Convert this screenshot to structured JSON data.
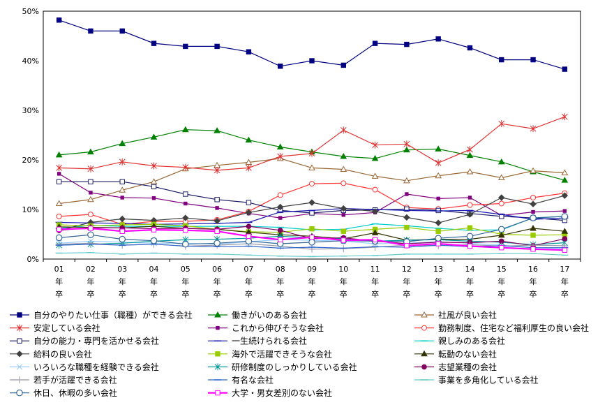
{
  "chart_data": {
    "type": "line",
    "categories": [
      [
        "01",
        "年",
        "卒"
      ],
      [
        "02",
        "年",
        "卒"
      ],
      [
        "03",
        "年",
        "卒"
      ],
      [
        "04",
        "年",
        "卒"
      ],
      [
        "05",
        "年",
        "卒"
      ],
      [
        "06",
        "年",
        "卒"
      ],
      [
        "07",
        "年",
        "卒"
      ],
      [
        "08",
        "年",
        "卒"
      ],
      [
        "09",
        "年",
        "卒"
      ],
      [
        "10",
        "年",
        "卒"
      ],
      [
        "11",
        "年",
        "卒"
      ],
      [
        "12",
        "年",
        "卒"
      ],
      [
        "13",
        "年",
        "卒"
      ],
      [
        "14",
        "年",
        "卒"
      ],
      [
        "15",
        "年",
        "卒"
      ],
      [
        "16",
        "年",
        "卒"
      ],
      [
        "17",
        "年",
        "卒"
      ]
    ],
    "y_ticks": [
      "0%",
      "10%",
      "20%",
      "30%",
      "40%",
      "50%"
    ],
    "ylim": [
      0,
      50
    ],
    "grid": "horizontal dashed at 10% steps",
    "legend_position": "bottom",
    "series": [
      {
        "name": "自分のやりたい仕事（職種）ができる会社",
        "color": "#000080",
        "marker": "square-filled",
        "width": 1.2,
        "values": [
          48.2,
          46.0,
          46.0,
          43.5,
          42.9,
          42.9,
          41.8,
          38.9,
          40.0,
          39.1,
          43.5,
          43.3,
          44.4,
          42.6,
          40.2,
          40.2,
          38.3
        ]
      },
      {
        "name": "働きがいのある会社",
        "color": "#008000",
        "marker": "triangle-filled",
        "width": 1.2,
        "values": [
          21.0,
          21.6,
          23.3,
          24.6,
          26.1,
          25.9,
          24.0,
          22.6,
          21.6,
          20.7,
          20.3,
          22.0,
          22.2,
          20.9,
          19.6,
          17.6,
          15.9
        ]
      },
      {
        "name": "社風が良い会社",
        "color": "#996633",
        "marker": "triangle-open",
        "width": 1.2,
        "values": [
          11.2,
          12.0,
          13.9,
          15.6,
          18.2,
          18.9,
          19.5,
          20.3,
          18.4,
          18.1,
          16.7,
          15.8,
          16.8,
          17.6,
          16.4,
          17.8,
          17.4
        ]
      },
      {
        "name": "安定している会社",
        "color": "#e03030",
        "marker": "asterisk",
        "width": 1.2,
        "values": [
          18.4,
          18.2,
          19.6,
          18.8,
          18.5,
          17.9,
          18.4,
          20.7,
          21.3,
          26.0,
          23.0,
          23.2,
          19.4,
          22.1,
          27.3,
          26.3,
          28.7
        ]
      },
      {
        "name": "これから伸びそうな会社",
        "color": "#800080",
        "marker": "square-small",
        "width": 1.2,
        "values": [
          17.2,
          13.4,
          12.4,
          12.3,
          11.2,
          10.3,
          9.2,
          8.3,
          9.2,
          8.9,
          9.4,
          13.1,
          12.2,
          12.4,
          8.8,
          9.5,
          9.7
        ]
      },
      {
        "name": "勤務制度、住宅など福利厚生の良い会社",
        "color": "#ff3333",
        "marker": "circle-open",
        "width": 1.2,
        "values": [
          8.6,
          9.0,
          7.0,
          7.6,
          7.6,
          7.9,
          9.6,
          12.9,
          15.2,
          15.3,
          14.0,
          10.4,
          10.1,
          10.9,
          11.2,
          12.4,
          13.3
        ]
      },
      {
        "name": "自分の能力・専門を活かせる会社",
        "color": "#1a1a66",
        "marker": "square-open",
        "width": 1.2,
        "values": [
          15.6,
          15.6,
          15.6,
          14.6,
          13.1,
          12.0,
          11.4,
          9.8,
          9.3,
          9.8,
          9.9,
          10.1,
          9.8,
          9.2,
          8.6,
          8.3,
          7.8
        ]
      },
      {
        "name": "一生続けられる会社",
        "color": "#1a1ab3",
        "marker": "dash",
        "width": 1.2,
        "values": [
          7.4,
          7.3,
          7.2,
          7.0,
          7.1,
          7.2,
          7.4,
          9.5,
          9.8,
          10.2,
          10.0,
          9.8,
          9.7,
          9.8,
          9.0,
          8.0,
          8.3
        ]
      },
      {
        "name": "親しみのある会社",
        "color": "#00cccc",
        "marker": "dash",
        "width": 1.2,
        "values": [
          6.2,
          6.8,
          6.6,
          6.6,
          6.6,
          6.6,
          6.6,
          6.4,
          5.9,
          6.0,
          7.1,
          6.7,
          6.2,
          5.8,
          5.9,
          8.3,
          8.6
        ]
      },
      {
        "name": "給料の良い会社",
        "color": "#404040",
        "marker": "diamond-filled",
        "width": 1.2,
        "values": [
          5.8,
          7.4,
          8.1,
          7.8,
          8.3,
          7.7,
          9.4,
          10.5,
          11.4,
          10.2,
          9.6,
          8.4,
          7.3,
          9.0,
          12.4,
          11.1,
          12.8
        ]
      },
      {
        "name": "海外で活躍できそうな会社",
        "color": "#99cc00",
        "marker": "square-filled",
        "width": 1.2,
        "values": [
          6.9,
          6.7,
          6.9,
          7.0,
          6.7,
          6.0,
          5.5,
          5.4,
          6.1,
          5.6,
          6.0,
          6.4,
          5.6,
          6.3,
          5.0,
          4.8,
          4.9
        ]
      },
      {
        "name": "転勤のない会社",
        "color": "#333300",
        "marker": "triangle-filled",
        "width": 1.2,
        "values": [
          6.5,
          6.4,
          6.3,
          6.6,
          6.2,
          6.0,
          5.4,
          4.9,
          4.6,
          4.1,
          5.3,
          3.8,
          4.0,
          4.0,
          4.8,
          6.2,
          5.6
        ]
      },
      {
        "name": "いろいろな職種を経験できる会社",
        "color": "#99ccff",
        "marker": "cross",
        "width": 1.2,
        "values": [
          3.2,
          3.6,
          3.4,
          3.2,
          3.2,
          3.0,
          3.5,
          3.9,
          3.8,
          3.6,
          3.1,
          3.2,
          3.5,
          3.2,
          2.8,
          2.3,
          2.1
        ]
      },
      {
        "name": "研修制度のしっかりしている会社",
        "color": "#009999",
        "marker": "star",
        "width": 1.2,
        "values": [
          2.8,
          3.0,
          3.2,
          3.6,
          3.9,
          4.0,
          4.2,
          4.6,
          4.3,
          4.1,
          3.6,
          3.8,
          3.9,
          3.6,
          3.4,
          2.9,
          3.3
        ]
      },
      {
        "name": "志望業種の会社",
        "color": "#800060",
        "marker": "circle-filled",
        "width": 1.2,
        "values": [
          5.8,
          6.3,
          6.3,
          6.1,
          6.2,
          6.0,
          6.6,
          5.8,
          4.1,
          4.3,
          3.6,
          3.1,
          3.4,
          3.3,
          3.6,
          2.7,
          4.1
        ]
      },
      {
        "name": "若手が活躍できる会社",
        "color": "#9999aa",
        "marker": "plus",
        "width": 1.2,
        "values": [
          3.0,
          3.2,
          2.8,
          3.0,
          2.6,
          2.8,
          3.1,
          2.6,
          2.0,
          2.1,
          2.4,
          2.8,
          2.7,
          2.9,
          2.6,
          2.8,
          2.7
        ]
      },
      {
        "name": "有名な会社",
        "color": "#3366cc",
        "marker": "dash",
        "width": 1.2,
        "values": [
          2.8,
          3.0,
          2.8,
          3.0,
          2.6,
          2.5,
          2.6,
          2.2,
          2.4,
          2.2,
          2.5,
          2.4,
          2.8,
          2.5,
          2.7,
          2.3,
          2.3
        ]
      },
      {
        "name": "事業を多角化している会社",
        "color": "#66cccc",
        "marker": "dash",
        "width": 1.2,
        "values": [
          1.2,
          1.3,
          1.0,
          1.2,
          1.0,
          1.0,
          0.8,
          0.6,
          0.5,
          0.6,
          0.7,
          1.0,
          1.0,
          1.0,
          1.1,
          1.1,
          0.8
        ]
      },
      {
        "name": "休日、休暇の多い会社",
        "color": "#336699",
        "marker": "circle-open-large",
        "width": 1.2,
        "values": [
          4.3,
          4.9,
          4.0,
          3.7,
          3.0,
          3.2,
          3.6,
          3.1,
          3.4,
          3.7,
          3.6,
          3.5,
          4.2,
          4.6,
          6.0,
          8.3,
          8.6
        ]
      },
      {
        "name": "大学・男女差別のない会社",
        "color": "#ff00ff",
        "marker": "square-open",
        "width": 2.2,
        "values": [
          6.0,
          6.2,
          5.6,
          5.9,
          5.8,
          5.6,
          4.6,
          3.9,
          4.4,
          3.8,
          3.9,
          2.7,
          3.1,
          2.6,
          2.3,
          2.0,
          1.8
        ]
      }
    ]
  }
}
